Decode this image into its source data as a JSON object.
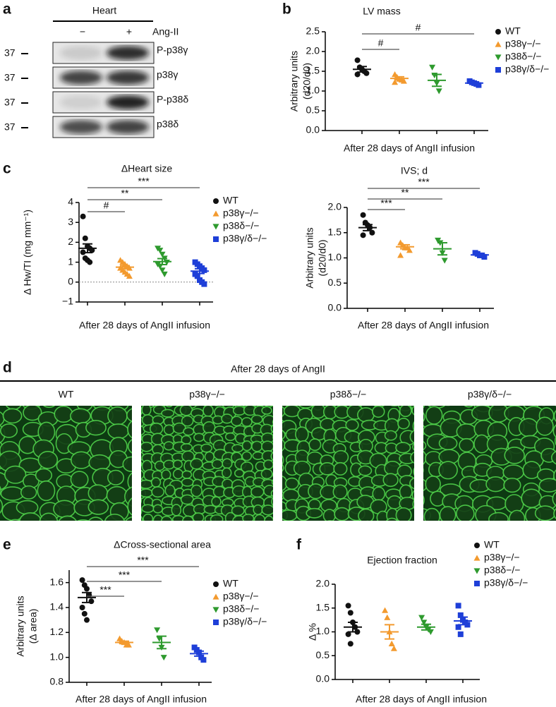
{
  "blot": {
    "panel": "a",
    "tissue": "Heart",
    "conditions": [
      "−",
      "+"
    ],
    "treatment": "Ang-II",
    "rows": [
      {
        "label": "P-p38γ",
        "marker": 37
      },
      {
        "label": "p38γ",
        "marker": 37
      },
      {
        "label": "P-p38δ",
        "marker": 37
      },
      {
        "label": "p38δ",
        "marker": 37
      }
    ]
  },
  "micrographs": {
    "panel": "d",
    "title": "After 28 days of AngII",
    "labels": [
      "WT",
      "p38γ−/−",
      "p38δ−/−",
      "p38γ/δ−/−"
    ]
  },
  "chart_data": [
    {
      "panel": "b",
      "type": "dot",
      "title": "LV mass",
      "y_label": [
        "Arbitrary units",
        "(d20/d0)"
      ],
      "x_label": "After 28 days of AngII infusion",
      "ylim": [
        0,
        2.5
      ],
      "yticks": [
        {
          "value": 0,
          "label": "0.0"
        },
        0.5,
        {
          "value": 1,
          "label": "1.0"
        },
        1.5,
        {
          "value": 2,
          "label": "2.0"
        },
        2.5
      ],
      "legend": true,
      "series": [
        {
          "name": "WT",
          "color": "#111111",
          "marker": "circle",
          "values": [
            1.78,
            1.6,
            1.55,
            1.5,
            1.45,
            1.42
          ],
          "mean": 1.55,
          "sem": 0.07
        },
        {
          "name": "p38γ−/−",
          "color": "#f39a2e",
          "marker": "triangle",
          "values": [
            1.42,
            1.35,
            1.3,
            1.28,
            1.25,
            1.22
          ],
          "mean": 1.32,
          "sem": 0.04,
          "significance": "#"
        },
        {
          "name": "p38δ−/−",
          "color": "#2e9a2e",
          "marker": "triangle-down",
          "values": [
            1.6,
            1.4,
            1.2,
            1.0
          ],
          "mean": 1.27,
          "sem": 0.15
        },
        {
          "name": "p38γ/δ−/−",
          "color": "#1e3fd8",
          "marker": "square",
          "values": [
            1.25,
            1.22,
            1.2,
            1.18,
            1.15
          ],
          "mean": 1.2,
          "sem": 0.02,
          "significance": "#"
        }
      ]
    },
    {
      "panel": "c",
      "type": "dot",
      "title": "ΔHeart size",
      "y_label": [
        "Δ Hw/TI (mg mm⁻¹)"
      ],
      "x_label": "After 28 days of AngII infusion",
      "ylim": [
        -1,
        4
      ],
      "yticks": [
        {
          "value": -1,
          "label": "−1"
        },
        0,
        1,
        2,
        3,
        4
      ],
      "legend": true,
      "reference_line": 0,
      "series": [
        {
          "name": "WT",
          "color": "#111111",
          "marker": "circle",
          "values": [
            3.3,
            2.2,
            1.8,
            1.7,
            1.6,
            1.5,
            1.2,
            1.1,
            1.0
          ],
          "mean": 1.7,
          "sem": 0.22
        },
        {
          "name": "p38γ−/−",
          "color": "#f39a2e",
          "marker": "triangle",
          "values": [
            1.1,
            1.0,
            0.9,
            0.8,
            0.7,
            0.7,
            0.6,
            0.5,
            0.4,
            0.3
          ],
          "mean": 0.75,
          "sem": 0.08,
          "significance": "#"
        },
        {
          "name": "p38δ−/−",
          "color": "#2e9a2e",
          "marker": "triangle-down",
          "values": [
            1.7,
            1.6,
            1.4,
            1.2,
            1.0,
            0.9,
            0.8,
            0.6,
            0.4
          ],
          "mean": 1.03,
          "sem": 0.15,
          "significance": "**"
        },
        {
          "name": "p38γ/δ−/−",
          "color": "#1e3fd8",
          "marker": "square",
          "values": [
            1.0,
            0.9,
            0.8,
            0.7,
            0.6,
            0.4,
            0.3,
            0.1,
            0.0,
            -0.1
          ],
          "mean": 0.55,
          "sem": 0.12,
          "significance": "***"
        }
      ]
    },
    {
      "type": "dot",
      "title": "IVS; d",
      "y_label": [
        "Arbitrary units",
        "(d20/d0)"
      ],
      "x_label": "After 28 days of AngII infusion",
      "ylim": [
        0,
        2
      ],
      "yticks": [
        {
          "value": 0,
          "label": "0.0"
        },
        0.5,
        {
          "value": 1,
          "label": "1.0"
        },
        1.5,
        {
          "value": 2,
          "label": "2.0"
        }
      ],
      "legend": false,
      "series": [
        {
          "color": "#111111",
          "marker": "circle",
          "values": [
            1.85,
            1.7,
            1.65,
            1.6,
            1.5,
            1.45
          ],
          "mean": 1.6,
          "sem": 0.06
        },
        {
          "color": "#f39a2e",
          "marker": "triangle",
          "values": [
            1.3,
            1.25,
            1.2,
            1.2,
            1.15,
            1.05
          ],
          "mean": 1.22,
          "sem": 0.04,
          "significance": "***"
        },
        {
          "color": "#2e9a2e",
          "marker": "triangle-down",
          "values": [
            1.35,
            1.3,
            1.1,
            0.95
          ],
          "mean": 1.18,
          "sem": 0.12,
          "significance": "**"
        },
        {
          "color": "#1e3fd8",
          "marker": "square",
          "values": [
            1.1,
            1.08,
            1.05,
            1.05,
            1.02
          ],
          "mean": 1.06,
          "sem": 0.02,
          "significance": "***"
        }
      ]
    },
    {
      "panel": "e",
      "type": "dot",
      "title": "ΔCross-sectional area",
      "y_label": [
        "Arbitrary units",
        "(Δ area)"
      ],
      "x_label": "After 28 days of AngII infusion",
      "ylim": [
        0.8,
        1.7
      ],
      "yticks": [
        0.8,
        {
          "value": 1,
          "label": "1.0"
        },
        1.2,
        1.4,
        1.6
      ],
      "legend": true,
      "series": [
        {
          "name": "WT",
          "color": "#111111",
          "marker": "circle",
          "values": [
            1.62,
            1.58,
            1.55,
            1.5,
            1.45,
            1.4,
            1.35,
            1.3
          ],
          "mean": 1.48,
          "sem": 0.04
        },
        {
          "name": "p38γ−/−",
          "color": "#f39a2e",
          "marker": "triangle",
          "values": [
            1.15,
            1.13,
            1.12,
            1.1,
            1.1
          ],
          "mean": 1.12,
          "sem": 0.01,
          "significance": "***"
        },
        {
          "name": "p38δ−/−",
          "color": "#2e9a2e",
          "marker": "triangle-down",
          "values": [
            1.22,
            1.15,
            1.08,
            1.0
          ],
          "mean": 1.12,
          "sem": 0.05,
          "significance": "***"
        },
        {
          "name": "p38γ/δ−/−",
          "color": "#1e3fd8",
          "marker": "square",
          "values": [
            1.08,
            1.06,
            1.04,
            1.0,
            0.98
          ],
          "mean": 1.03,
          "sem": 0.02,
          "significance": "***"
        }
      ]
    },
    {
      "panel": "f",
      "type": "dot",
      "title": "Ejection fraction",
      "y_label": [
        "Δ %"
      ],
      "x_label": "After 28 days of AngII infusion",
      "ylim": [
        0,
        2
      ],
      "yticks": [
        {
          "value": 0,
          "label": "0.0"
        },
        0.5,
        {
          "value": 1,
          "label": "1.0"
        },
        1.5,
        {
          "value": 2,
          "label": "2.0"
        }
      ],
      "legend": true,
      "series": [
        {
          "name": "WT",
          "color": "#111111",
          "marker": "circle",
          "values": [
            1.55,
            1.4,
            1.2,
            1.1,
            1.0,
            0.95,
            0.75
          ],
          "mean": 1.1,
          "sem": 0.1
        },
        {
          "name": "p38γ−/−",
          "color": "#f39a2e",
          "marker": "triangle",
          "values": [
            1.45,
            1.3,
            1.0,
            0.75,
            0.65
          ],
          "mean": 1.0,
          "sem": 0.15
        },
        {
          "name": "p38δ−/−",
          "color": "#2e9a2e",
          "marker": "triangle-down",
          "values": [
            1.3,
            1.2,
            1.1,
            1.05,
            1.0
          ],
          "mean": 1.1,
          "sem": 0.06
        },
        {
          "name": "p38γ/δ−/−",
          "color": "#1e3fd8",
          "marker": "square",
          "values": [
            1.55,
            1.35,
            1.25,
            1.2,
            1.15,
            1.1,
            0.95
          ],
          "mean": 1.23,
          "sem": 0.08
        }
      ]
    }
  ]
}
